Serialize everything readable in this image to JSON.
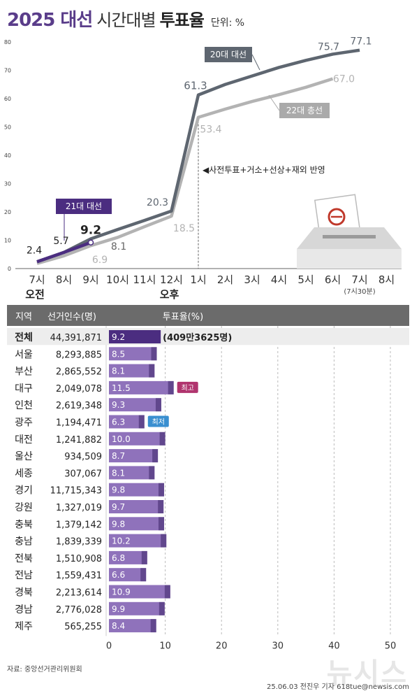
{
  "header": {
    "title_year": "2025 대선",
    "title_mid": "시간대별",
    "title_bold": "투표율",
    "unit": "단위: %"
  },
  "chart_data": [
    {
      "type": "line",
      "x": [
        "7시",
        "8시",
        "9시",
        "10시",
        "11시",
        "12시",
        "1시",
        "2시",
        "3시",
        "4시",
        "5시",
        "6시",
        "7시",
        "8시"
      ],
      "ylim": [
        0,
        80
      ],
      "yticks": [
        0,
        10,
        20,
        30,
        40,
        50,
        60,
        70,
        80
      ],
      "ampm_labels": [
        {
          "x": "7시",
          "text": "오전"
        },
        {
          "x": "12시",
          "text": "오후"
        }
      ],
      "x_note": {
        "x": "7시",
        "text": "(7시30분)"
      },
      "series": [
        {
          "name": "20대 대선",
          "color": "#5e6670",
          "values": [
            2.4,
            5.7,
            10.5,
            13.8,
            17.0,
            20.3,
            61.3,
            65.0,
            68.0,
            71.0,
            73.5,
            75.7,
            77.1,
            null
          ],
          "labels": [
            {
              "i": 6,
              "text": "61.3"
            },
            {
              "i": 11,
              "text": "75.7"
            },
            {
              "i": 12,
              "text": "77.1"
            }
          ]
        },
        {
          "name": "22대 총선",
          "color": "#b3b3b3",
          "values": [
            1.8,
            4.5,
            8.1,
            11.0,
            14.8,
            18.5,
            53.4,
            56.3,
            59.0,
            61.4,
            64.0,
            67.0,
            null,
            null
          ],
          "labels": [
            {
              "i": 5,
              "text": "18.5"
            },
            {
              "i": 6,
              "text": "53.4"
            },
            {
              "i": 11,
              "text": "67.0"
            }
          ]
        },
        {
          "name": "21대 대선",
          "color": "#4b2d80",
          "values": [
            2.4,
            5.7,
            9.2,
            null,
            null,
            null,
            null,
            null,
            null,
            null,
            null,
            null,
            null,
            null
          ],
          "labels": [
            {
              "i": 0,
              "text": "2.4"
            },
            {
              "i": 1,
              "text": "5.7"
            },
            {
              "i": 2,
              "text": "9.2"
            }
          ]
        }
      ],
      "extra_labels": [
        {
          "text": "20.3"
        },
        {
          "text": "8.1"
        },
        {
          "text": "6.9"
        }
      ],
      "annotation": "◀사전투표+거소+선상+재외 반영",
      "icon": "ballot-box-icon"
    },
    {
      "type": "bar",
      "headers": [
        "지역",
        "선거인수(명)",
        "투표율(%)"
      ],
      "xlim": [
        0,
        50
      ],
      "xticks": [
        0,
        10,
        20,
        30,
        40,
        50
      ],
      "rows": [
        {
          "region": "전체",
          "voters": "44,391,871",
          "value": 9.2,
          "highlight": true,
          "note": "(409만3625명)"
        },
        {
          "region": "서울",
          "voters": "8,293,885",
          "value": 8.5
        },
        {
          "region": "부산",
          "voters": "2,865,552",
          "value": 8.1
        },
        {
          "region": "대구",
          "voters": "2,049,078",
          "value": 11.5,
          "badge": "최고",
          "badge_color": "#b0346e"
        },
        {
          "region": "인천",
          "voters": "2,619,348",
          "value": 9.3
        },
        {
          "region": "광주",
          "voters": "1,194,471",
          "value": 6.3,
          "badge": "최저",
          "badge_color": "#3a8fd0"
        },
        {
          "region": "대전",
          "voters": "1,241,882",
          "value": 10.0
        },
        {
          "region": "울산",
          "voters": "934,509",
          "value": 8.7
        },
        {
          "region": "세종",
          "voters": "307,067",
          "value": 8.1
        },
        {
          "region": "경기",
          "voters": "11,715,343",
          "value": 9.8
        },
        {
          "region": "강원",
          "voters": "1,327,019",
          "value": 9.7
        },
        {
          "region": "충북",
          "voters": "1,379,142",
          "value": 9.8
        },
        {
          "region": "충남",
          "voters": "1,839,339",
          "value": 10.2
        },
        {
          "region": "전북",
          "voters": "1,510,908",
          "value": 6.8
        },
        {
          "region": "전남",
          "voters": "1,559,431",
          "value": 6.6
        },
        {
          "region": "경북",
          "voters": "2,213,614",
          "value": 10.9
        },
        {
          "region": "경남",
          "voters": "2,776,028",
          "value": 9.9
        },
        {
          "region": "제주",
          "voters": "565,255",
          "value": 8.4
        }
      ]
    }
  ],
  "footer": {
    "source": "자료: 중앙선거관리위원회",
    "credit": "25.06.03 전진우 기자 618tue@newsis.com",
    "watermark": "뉴시스"
  },
  "colors": {
    "purple_dark": "#4b2d80",
    "purple_bar": "#8f72bb",
    "grey_line": "#5e6670",
    "light_line": "#b3b3b3",
    "header_bg": "#6b6b6b"
  }
}
